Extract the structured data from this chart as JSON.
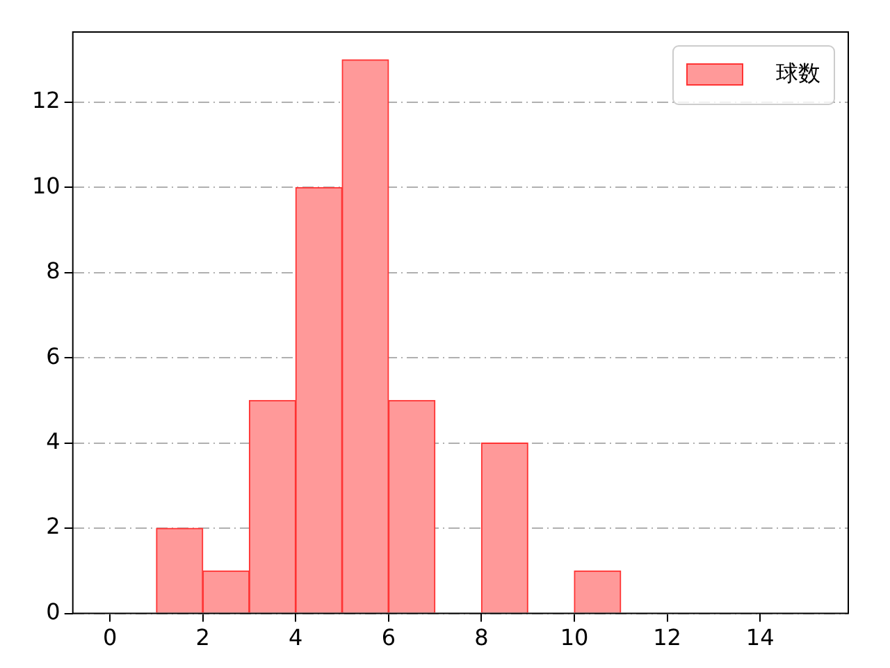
{
  "chart_data": {
    "type": "histogram",
    "bins": [
      1,
      2,
      3,
      4,
      5,
      6,
      7,
      8,
      9,
      10,
      11
    ],
    "series": [
      {
        "name": "球数",
        "color": "#ff9999",
        "values": [
          2,
          1,
          5,
          10,
          13,
          5,
          0,
          4,
          0,
          1
        ]
      }
    ],
    "xlim": [
      -0.8,
      15.9
    ],
    "xticks": [
      0,
      2,
      4,
      6,
      8,
      10,
      12,
      14
    ],
    "ylim": [
      0,
      13.65
    ],
    "yticks": [
      0,
      2,
      4,
      6,
      8,
      10,
      12
    ],
    "grid": "y",
    "legend": "top right"
  }
}
